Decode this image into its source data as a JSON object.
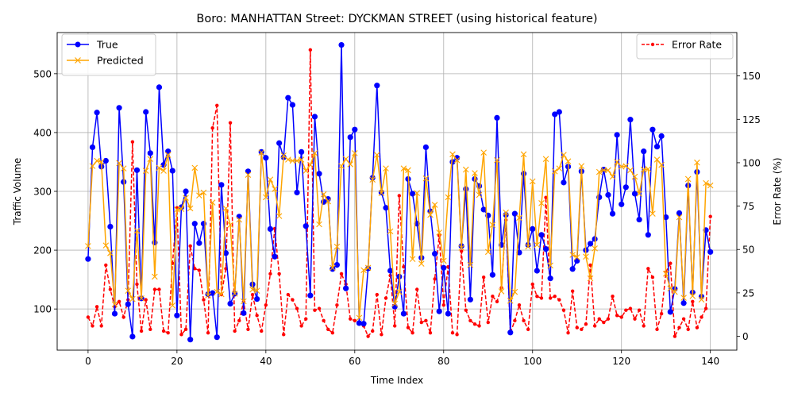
{
  "chart_data": {
    "type": "line",
    "title": "Boro: MANHATTAN Street: DYCKMAN STREET (using historical feature)",
    "xlabel": "Time Index",
    "ylabel": "Traffic Volume",
    "ylabel_right": "Error Rate (%)",
    "xlim": [
      -6.95,
      145.95
    ],
    "ylim": [
      30,
      570
    ],
    "ylim_right": [
      -8,
      175
    ],
    "xticks": [
      0,
      20,
      40,
      60,
      80,
      100,
      120,
      140
    ],
    "yticks": [
      100,
      200,
      300,
      400,
      500
    ],
    "yticks_right": [
      0,
      25,
      50,
      75,
      100,
      125,
      150
    ],
    "grid": true,
    "legend_left": "upper left",
    "legend_right": "upper right",
    "colors": {
      "true": "#0000ff",
      "predicted": "#ffa500",
      "error": "#ff0000"
    },
    "series": [
      {
        "name": "True",
        "axis": "left",
        "style": "solid-circle",
        "values": [
          185,
          375,
          434,
          342,
          352,
          240,
          92,
          442,
          316,
          108,
          53,
          336,
          118,
          435,
          365,
          213,
          477,
          345,
          368,
          335,
          89,
          273,
          300,
          48,
          245,
          212,
          245,
          125,
          127,
          52,
          311,
          195,
          109,
          126,
          257,
          93,
          334,
          142,
          117,
          367,
          357,
          236,
          189,
          382,
          358,
          459,
          447,
          298,
          367,
          241,
          123,
          427,
          330,
          282,
          287,
          168,
          175,
          549,
          135,
          392,
          405,
          76,
          75,
          169,
          323,
          480,
          298,
          272,
          165,
          104,
          155,
          92,
          321,
          296,
          245,
          187,
          375,
          266,
          194,
          96,
          170,
          92,
          350,
          357,
          207,
          304,
          116,
          321,
          309,
          269,
          259,
          158,
          425,
          209,
          260,
          60,
          262,
          196,
          330,
          209,
          236,
          165,
          226,
          202,
          152,
          431,
          435,
          315,
          342,
          168,
          182,
          334,
          200,
          211,
          219,
          290,
          337,
          294,
          262,
          396,
          278,
          307,
          422,
          296,
          252,
          368,
          226,
          405,
          376,
          394,
          256,
          95,
          134,
          263,
          110,
          310,
          128,
          333,
          121,
          234,
          197
        ]
      },
      {
        "name": "Predicted",
        "axis": "left",
        "style": "x",
        "values": [
          207,
          343,
          352,
          350,
          208,
          195,
          108,
          348,
          339,
          131,
          117,
          233,
          118,
          335,
          355,
          155,
          340,
          335,
          362,
          106,
          269,
          270,
          289,
          271,
          340,
          293,
          298,
          123,
          281,
          129,
          125,
          271,
          243,
          126,
          252,
          113,
          328,
          133,
          131,
          366,
          290,
          320,
          304,
          258,
          361,
          354,
          352,
          352,
          354,
          335,
          345,
          365,
          244,
          295,
          283,
          170,
          206,
          343,
          355,
          346,
          365,
          85,
          166,
          170,
          320,
          362,
          297,
          339,
          232,
          109,
          129,
          339,
          336,
          185,
          297,
          177,
          322,
          260,
          277,
          230,
          182,
          290,
          363,
          353,
          204,
          337,
          175,
          331,
          294,
          366,
          197,
          243,
          353,
          130,
          264,
          114,
          129,
          255,
          363,
          206,
          317,
          209,
          280,
          355,
          174,
          334,
          339,
          362,
          351,
          192,
          188,
          343,
          189,
          152,
          203,
          333,
          336,
          336,
          325,
          350,
          342,
          343,
          336,
          325,
          296,
          337,
          338,
          262,
          354,
          345,
          160,
          135,
          129,
          256,
          119,
          321,
          122,
          349,
          116,
          314,
          310
        ]
      },
      {
        "name": "Error Rate",
        "axis": "right",
        "style": "dashed-dot",
        "values": [
          11,
          6,
          17,
          6,
          41,
          27,
          17,
          20,
          11,
          21,
          112,
          30,
          3,
          21,
          4,
          27,
          27,
          3,
          2,
          42,
          74,
          1,
          4,
          52,
          39,
          38,
          21,
          2,
          120,
          133,
          24,
          39,
          123,
          3,
          9,
          20,
          4,
          24,
          12,
          3,
          18,
          36,
          62,
          36,
          1,
          24,
          21,
          16,
          6,
          10,
          165,
          15,
          16,
          9,
          4,
          2,
          18,
          36,
          30,
          10,
          9,
          8,
          6,
          0,
          3,
          24,
          1,
          22,
          35,
          6,
          81,
          40,
          5,
          2,
          27,
          8,
          9,
          2,
          33,
          58,
          18,
          40,
          2,
          1,
          49,
          15,
          9,
          7,
          6,
          34,
          8,
          23,
          20,
          28,
          67,
          2,
          9,
          18,
          9,
          4,
          30,
          23,
          22,
          80,
          22,
          23,
          21,
          15,
          2,
          26,
          5,
          4,
          7,
          41,
          6,
          10,
          8,
          10,
          23,
          12,
          11,
          15,
          16,
          10,
          15,
          6,
          39,
          34,
          4,
          13,
          37,
          42,
          0,
          5,
          10,
          4,
          20,
          5,
          11,
          16,
          69
        ]
      }
    ]
  }
}
